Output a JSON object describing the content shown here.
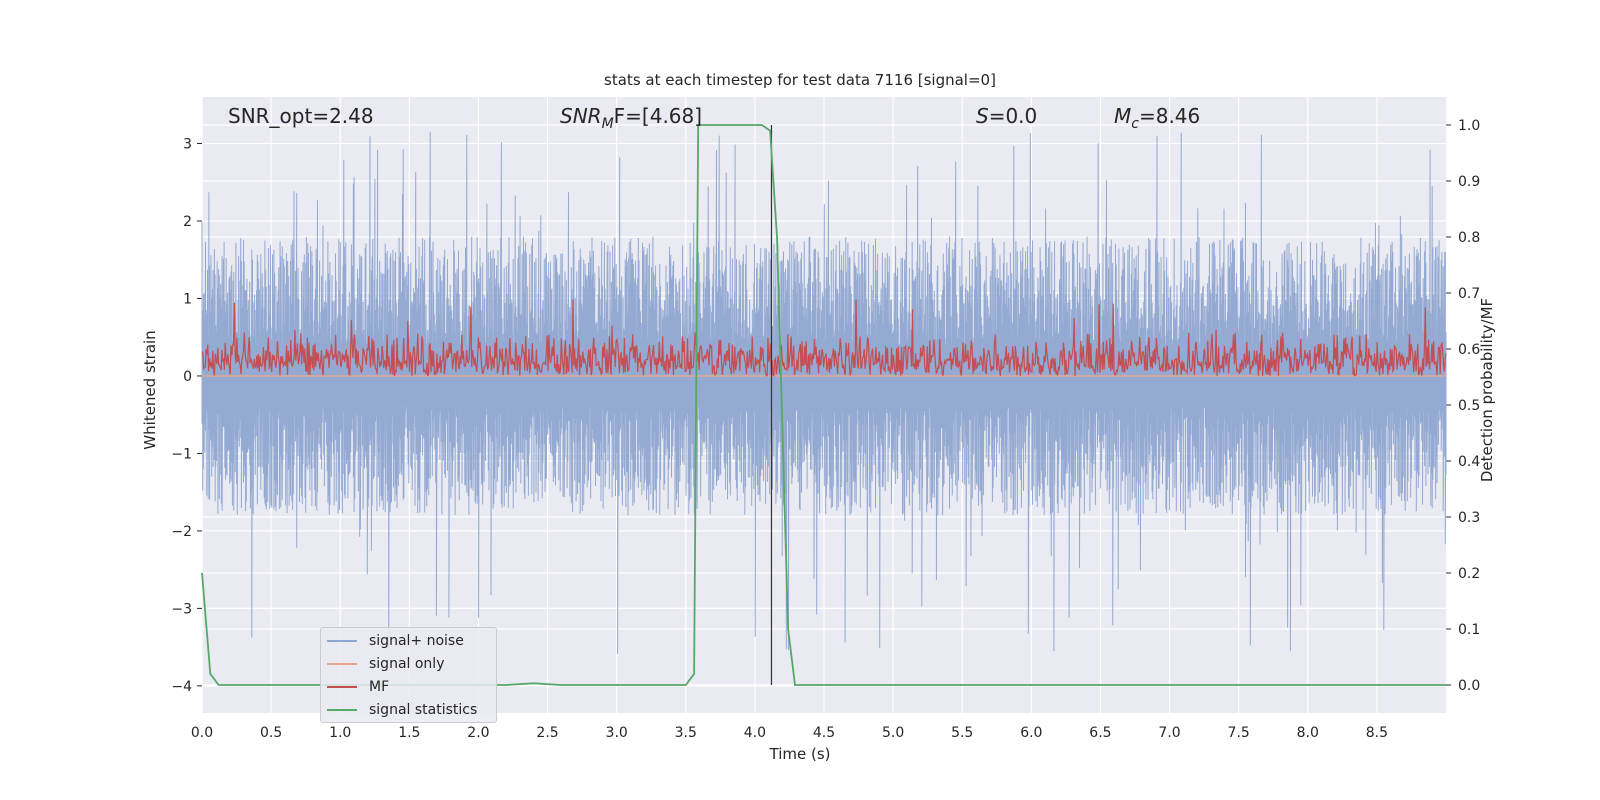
{
  "chart_data": {
    "type": "line",
    "title": "stats at each timestep for test data 7116 [signal=0]",
    "xlabel": "Time (s)",
    "ylabel": "Whitened strain",
    "ylabel_right": "Detection probability/MF",
    "xlim": [
      0.0,
      9.0
    ],
    "ylim": [
      -4.35,
      3.6
    ],
    "ylim_right": [
      -0.05,
      1.05
    ],
    "x_ticks": [
      "0.0",
      "0.5",
      "1.0",
      "1.5",
      "2.0",
      "2.5",
      "3.0",
      "3.5",
      "4.0",
      "4.5",
      "5.0",
      "5.5",
      "6.0",
      "6.5",
      "7.0",
      "7.5",
      "8.0",
      "8.5"
    ],
    "y_ticks": [
      "3",
      "2",
      "1",
      "0",
      "−1",
      "−2",
      "−3",
      "−4"
    ],
    "y_ticks_right": [
      "1.0",
      "0.9",
      "0.8",
      "0.7",
      "0.6",
      "0.5",
      "0.4",
      "0.3",
      "0.2",
      "0.1",
      "0.0"
    ],
    "annotations": {
      "snr_opt": "SNR_opt=2.48",
      "snr_mf_base": "SNR",
      "snr_mf_sub": "M",
      "snr_mf_rest": "F=[4.68]",
      "s_italic": "S",
      "s_rest": "=0.0",
      "mc_base": "M",
      "mc_sub": "c",
      "mc_rest": "=8.46"
    },
    "vertical_marker_x": 4.12,
    "series": [
      {
        "name": "signal+ noise",
        "color": "#8fa6d0",
        "description_envelope": {
          "upper_typical": 1.8,
          "upper_peak": 3.2,
          "lower_typical": -1.8,
          "lower_peak": -3.6
        }
      },
      {
        "name": "signal only",
        "color": "#e9a58e",
        "x": [
          0.0,
          9.0
        ],
        "y": [
          0.0,
          0.0
        ]
      },
      {
        "name": "MF",
        "color": "#c44e52",
        "description_band": {
          "low": 0.0,
          "high": 0.6,
          "peak": 1.0
        }
      },
      {
        "name": "signal statistics",
        "color": "#55a868",
        "x": [
          0.0,
          0.06,
          0.12,
          0.3,
          2.0,
          2.2,
          2.4,
          2.6,
          3.0,
          3.5,
          3.56,
          3.59,
          3.62,
          3.67,
          4.05,
          4.11,
          4.16,
          4.2,
          4.24,
          4.29,
          9.0
        ],
        "y": [
          0.2,
          0.02,
          0.0,
          0.0,
          0.0,
          0.0,
          0.003,
          0.0,
          0.0,
          0.0,
          0.02,
          1.0,
          1.0,
          1.0,
          1.0,
          0.99,
          0.8,
          0.45,
          0.1,
          0.0,
          0.0
        ]
      }
    ],
    "legend_position": "lower-left"
  }
}
